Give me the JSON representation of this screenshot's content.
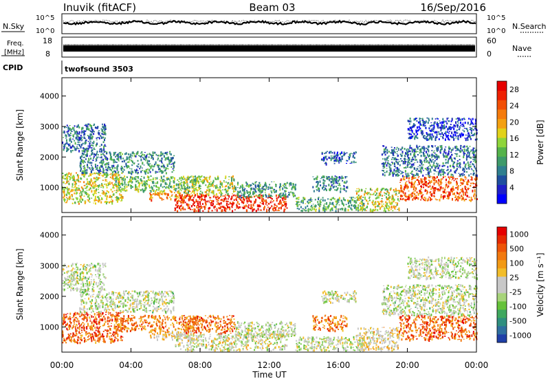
{
  "header": {
    "station": "Inuvik (fitACF)",
    "beam": "Beam 03",
    "date": "16/Sep/2016"
  },
  "top_panels": {
    "nsky_label": "N.Sky",
    "nsearch_label": "N.Search",
    "noise_ticks": [
      "10^5",
      "10^0"
    ],
    "freq_label_line1": "Freq.",
    "freq_label_line2": "[MHz]",
    "freq_ticks": [
      "18",
      "8"
    ],
    "nave_label": "Nave",
    "nave_ticks": [
      "60",
      "0"
    ],
    "cpid_label": "CPID",
    "cpid_value": "twofsound 3503"
  },
  "chart_data": [
    {
      "type": "heatmap",
      "name": "power",
      "ylabel": "Slant Range [km]",
      "xlabel": "",
      "x_range_hours": [
        0,
        24
      ],
      "ylim": [
        180,
        4600
      ],
      "y_ticks": [
        "1000",
        "2000",
        "3000",
        "4000"
      ],
      "x_ticks": [
        "00:00",
        "04:00",
        "08:00",
        "12:00",
        "16:00",
        "20:00",
        "00:00"
      ],
      "colorbar": {
        "label": "Power [dB]",
        "ticks": [
          "4",
          "8",
          "12",
          "16",
          "20",
          "24",
          "28"
        ],
        "colors": [
          "#0000ff",
          "#2020c8",
          "#1f4f9f",
          "#2f7f8f",
          "#3e9a6a",
          "#55b34b",
          "#8fd53b",
          "#e2d21a",
          "#f4a112",
          "#f57b0c",
          "#f24f06",
          "#ee2003",
          "#e60000"
        ]
      },
      "regions": [
        {
          "t0": 0.0,
          "t1": 3.5,
          "r0": 500,
          "r1": 1500,
          "level": 0.55
        },
        {
          "t0": 0.0,
          "t1": 2.5,
          "r0": 2200,
          "r1": 3100,
          "level": 0.25
        },
        {
          "t0": 1.0,
          "t1": 6.5,
          "r0": 1500,
          "r1": 2200,
          "level": 0.3
        },
        {
          "t0": 3.0,
          "t1": 8.0,
          "r0": 900,
          "r1": 1400,
          "level": 0.45
        },
        {
          "t0": 5.0,
          "t1": 7.5,
          "r0": 600,
          "r1": 900,
          "level": 0.7
        },
        {
          "t0": 6.5,
          "t1": 13.0,
          "r0": 250,
          "r1": 800,
          "level": 0.88
        },
        {
          "t0": 7.0,
          "t1": 10.0,
          "r0": 800,
          "r1": 1400,
          "level": 0.5
        },
        {
          "t0": 10.0,
          "t1": 13.5,
          "r0": 700,
          "r1": 1200,
          "level": 0.35
        },
        {
          "t0": 13.5,
          "t1": 17.5,
          "r0": 250,
          "r1": 700,
          "level": 0.4
        },
        {
          "t0": 14.5,
          "t1": 16.5,
          "r0": 900,
          "r1": 1400,
          "level": 0.3
        },
        {
          "t0": 15.0,
          "t1": 17.0,
          "r0": 1800,
          "r1": 2200,
          "level": 0.2
        },
        {
          "t0": 17.0,
          "t1": 19.5,
          "r0": 250,
          "r1": 1000,
          "level": 0.55
        },
        {
          "t0": 19.5,
          "t1": 24.0,
          "r0": 600,
          "r1": 1400,
          "level": 0.8
        },
        {
          "t0": 18.5,
          "t1": 24.0,
          "r0": 1400,
          "r1": 2400,
          "level": 0.25
        },
        {
          "t0": 20.0,
          "t1": 24.0,
          "r0": 2600,
          "r1": 3300,
          "level": 0.15
        }
      ]
    },
    {
      "type": "heatmap",
      "name": "velocity",
      "ylabel": "Slant Range [km]",
      "xlabel": "Time UT",
      "x_range_hours": [
        0,
        24
      ],
      "ylim": [
        180,
        4600
      ],
      "y_ticks": [
        "1000",
        "2000",
        "3000",
        "4000"
      ],
      "x_ticks": [
        "00:00",
        "04:00",
        "08:00",
        "12:00",
        "16:00",
        "20:00",
        "00:00"
      ],
      "colorbar": {
        "label": "Velocity [m s⁻¹]",
        "ticks": [
          "1000",
          "500",
          "100",
          "25",
          "-25",
          "-100",
          "-500",
          "-1000"
        ],
        "colors": [
          "#1f3fa8",
          "#2f6f9f",
          "#2f8f7f",
          "#3fa85f",
          "#66c23a",
          "#a7d47a",
          "#c8c8c8",
          "#c8c8c8",
          "#f2bd2a",
          "#f29a16",
          "#f2790f",
          "#ee5508",
          "#e62a02",
          "#e60000"
        ]
      },
      "regions": [
        {
          "t0": 0.0,
          "t1": 3.5,
          "r0": 500,
          "r1": 1500,
          "level": 0.8
        },
        {
          "t0": 0.0,
          "t1": 2.5,
          "r0": 2200,
          "r1": 3100,
          "level": 0.45
        },
        {
          "t0": 1.0,
          "t1": 6.5,
          "r0": 1500,
          "r1": 2200,
          "level": 0.45
        },
        {
          "t0": 3.0,
          "t1": 8.0,
          "r0": 900,
          "r1": 1400,
          "level": 0.75
        },
        {
          "t0": 5.0,
          "t1": 7.5,
          "r0": 600,
          "r1": 900,
          "level": 0.6
        },
        {
          "t0": 6.5,
          "t1": 13.0,
          "r0": 250,
          "r1": 800,
          "level": 0.5
        },
        {
          "t0": 7.0,
          "t1": 10.0,
          "r0": 800,
          "r1": 1400,
          "level": 0.78
        },
        {
          "t0": 10.0,
          "t1": 13.5,
          "r0": 700,
          "r1": 1200,
          "level": 0.45
        },
        {
          "t0": 13.5,
          "t1": 17.5,
          "r0": 250,
          "r1": 700,
          "level": 0.46
        },
        {
          "t0": 14.5,
          "t1": 16.5,
          "r0": 900,
          "r1": 1400,
          "level": 0.75
        },
        {
          "t0": 15.0,
          "t1": 17.0,
          "r0": 1800,
          "r1": 2200,
          "level": 0.48
        },
        {
          "t0": 17.0,
          "t1": 19.5,
          "r0": 250,
          "r1": 1000,
          "level": 0.55
        },
        {
          "t0": 19.5,
          "t1": 24.0,
          "r0": 600,
          "r1": 1400,
          "level": 0.8
        },
        {
          "t0": 18.5,
          "t1": 24.0,
          "r0": 1400,
          "r1": 2400,
          "level": 0.45
        },
        {
          "t0": 20.0,
          "t1": 24.0,
          "r0": 2600,
          "r1": 3300,
          "level": 0.45
        }
      ]
    }
  ]
}
